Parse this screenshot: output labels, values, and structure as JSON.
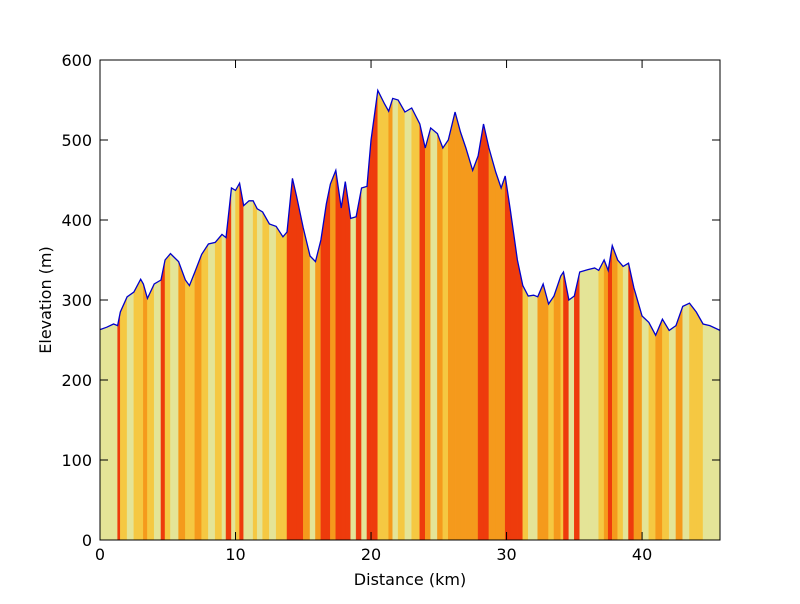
{
  "chart_data": {
    "type": "area",
    "xlabel": "Distance (km)",
    "ylabel": "Elevation (m)",
    "x": [
      0,
      0.5,
      1,
      1.3,
      1.5,
      2,
      2.5,
      3,
      3.2,
      3.5,
      4,
      4.5,
      4.8,
      5.2,
      5.8,
      6.3,
      6.6,
      7,
      7.5,
      8,
      8.5,
      9,
      9.3,
      9.7,
      10,
      10.3,
      10.6,
      11,
      11.3,
      11.6,
      12,
      12.5,
      13,
      13.5,
      13.8,
      14.2,
      14.5,
      15,
      15.5,
      15.9,
      16.3,
      16.7,
      17,
      17.4,
      17.8,
      18.1,
      18.5,
      18.9,
      19.3,
      19.7,
      20,
      20.5,
      21,
      21.3,
      21.6,
      22,
      22.5,
      23,
      23.6,
      24,
      24.4,
      24.9,
      25.3,
      25.7,
      26.2,
      26.6,
      27,
      27.5,
      27.9,
      28.3,
      28.7,
      29.2,
      29.6,
      29.9,
      30.3,
      30.8,
      31.2,
      31.6,
      32,
      32.3,
      32.7,
      33.1,
      33.5,
      34,
      34.2,
      34.6,
      35,
      35.4,
      36,
      36.5,
      36.8,
      37.2,
      37.5,
      37.8,
      38.2,
      38.6,
      39,
      39.4,
      40,
      40.5,
      41,
      41.5,
      42,
      42.5,
      43,
      43.5,
      44,
      44.5,
      45,
      45.75
    ],
    "values": [
      263,
      266,
      270,
      268,
      285,
      304,
      310,
      326,
      320,
      302,
      320,
      325,
      350,
      358,
      348,
      325,
      318,
      335,
      357,
      370,
      372,
      382,
      378,
      440,
      437,
      446,
      418,
      424,
      424,
      414,
      410,
      395,
      392,
      379,
      385,
      452,
      430,
      390,
      355,
      348,
      375,
      420,
      445,
      462,
      415,
      448,
      402,
      404,
      440,
      442,
      500,
      562,
      545,
      536,
      552,
      550,
      535,
      540,
      520,
      490,
      515,
      508,
      490,
      500,
      535,
      510,
      490,
      462,
      480,
      520,
      490,
      460,
      440,
      455,
      410,
      350,
      318,
      305,
      306,
      304,
      320,
      295,
      305,
      330,
      335,
      300,
      305,
      335,
      338,
      340,
      337,
      350,
      337,
      368,
      350,
      342,
      346,
      315,
      280,
      272,
      256,
      276,
      262,
      268,
      292,
      296,
      285,
      270,
      268,
      262
    ],
    "interval_colors": [
      "#e4e497",
      "#e4e497",
      "#e4e497",
      "#ee3b0c",
      "#f5c842",
      "#e4e497",
      "#f5c842",
      "#f5c842",
      "#f59a1c",
      "#f5c842",
      "#e4e497",
      "#ee3b0c",
      "#f5c842",
      "#e4e497",
      "#f59a1c",
      "#f5c842",
      "#f5c842",
      "#f59a1c",
      "#f5c842",
      "#e4e497",
      "#f5c842",
      "#e4e497",
      "#ee3b0c",
      "#e4e497",
      "#f5c842",
      "#ee3b0c",
      "#e4e497",
      "#e4e497",
      "#f5c842",
      "#e4e497",
      "#f5c842",
      "#e4e497",
      "#f5c842",
      "#f5c842",
      "#ee3b0c",
      "#ee3b0c",
      "#ee3b0c",
      "#f59a1c",
      "#e4e497",
      "#f59a1c",
      "#ee3b0c",
      "#ee3b0c",
      "#f59a1c",
      "#ee3b0c",
      "#ee3b0c",
      "#ee3b0c",
      "#e4e497",
      "#ee3b0c",
      "#e4e497",
      "#ee3b0c",
      "#ee3b0c",
      "#f5c842",
      "#f5c842",
      "#f59a1c",
      "#e4e497",
      "#f5c842",
      "#e4e497",
      "#f5c842",
      "#ee3b0c",
      "#f59a1c",
      "#e4e497",
      "#f59a1c",
      "#f5c842",
      "#f59a1c",
      "#f59a1c",
      "#f59a1c",
      "#f59a1c",
      "#f59a1c",
      "#ee3b0c",
      "#ee3b0c",
      "#f59a1c",
      "#f59a1c",
      "#f59a1c",
      "#ee3b0c",
      "#ee3b0c",
      "#ee3b0c",
      "#f5c842",
      "#e4e497",
      "#e4e497",
      "#f59a1c",
      "#f59a1c",
      "#f5c842",
      "#f59a1c",
      "#f5c842",
      "#ee3b0c",
      "#e4e497",
      "#ee3b0c",
      "#e4e497",
      "#e4e497",
      "#e4e497",
      "#f5c842",
      "#f59a1c",
      "#ee3b0c",
      "#f59a1c",
      "#f5c842",
      "#e4e497",
      "#ee3b0c",
      "#f59a1c",
      "#e4e497",
      "#f5c842",
      "#f59a1c",
      "#f5c842",
      "#e4e497",
      "#f59a1c",
      "#e4e497",
      "#f5c842",
      "#f5c842",
      "#e4e497",
      "#e4e497"
    ],
    "line_color": "#0000cc",
    "xlim": [
      0,
      45.75
    ],
    "xticks": [
      0,
      10,
      20,
      30,
      40
    ],
    "ylim": [
      0,
      600
    ],
    "yticks": [
      0,
      100,
      200,
      300,
      400,
      500,
      600
    ]
  }
}
